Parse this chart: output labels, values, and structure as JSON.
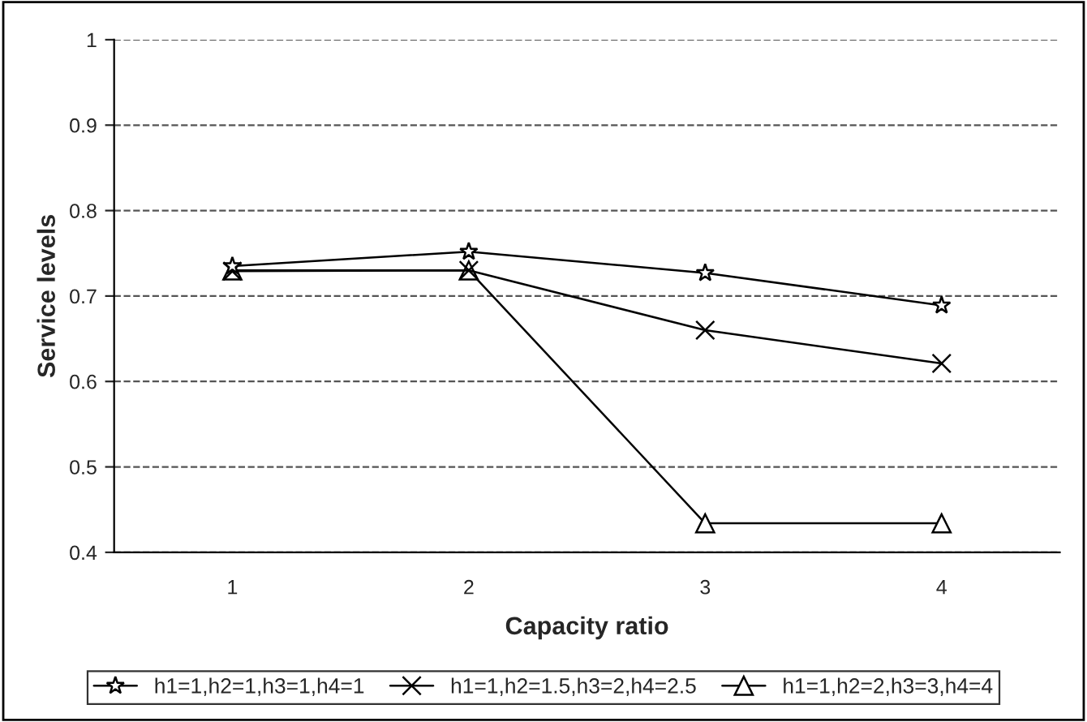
{
  "chart_data": {
    "type": "line",
    "xlabel": "Capacity ratio",
    "ylabel": "Service levels",
    "categories": [
      "1",
      "2",
      "3",
      "4"
    ],
    "series": [
      {
        "name": "h1=1,h2=1,h3=1,h4=1",
        "color": "#000000",
        "marker": "star",
        "values": [
          0.735,
          0.752,
          0.727,
          0.689
        ]
      },
      {
        "name": "h1=1,h2=1.5,h3=2,h4=2.5",
        "color": "#000000",
        "marker": "cross",
        "values": [
          0.729,
          0.73,
          0.66,
          0.621
        ]
      },
      {
        "name": "h1=1,h2=2,h3=3,h4=4",
        "color": "#000000",
        "marker": "triangle",
        "values": [
          0.73,
          0.73,
          0.434,
          0.434
        ]
      }
    ],
    "ylim": [
      0.4,
      1
    ],
    "yticks": [
      0.4,
      0.5,
      0.6,
      0.7,
      0.8,
      0.9,
      1
    ],
    "grid": "y",
    "legend": "bottom",
    "line_style": "solid"
  }
}
